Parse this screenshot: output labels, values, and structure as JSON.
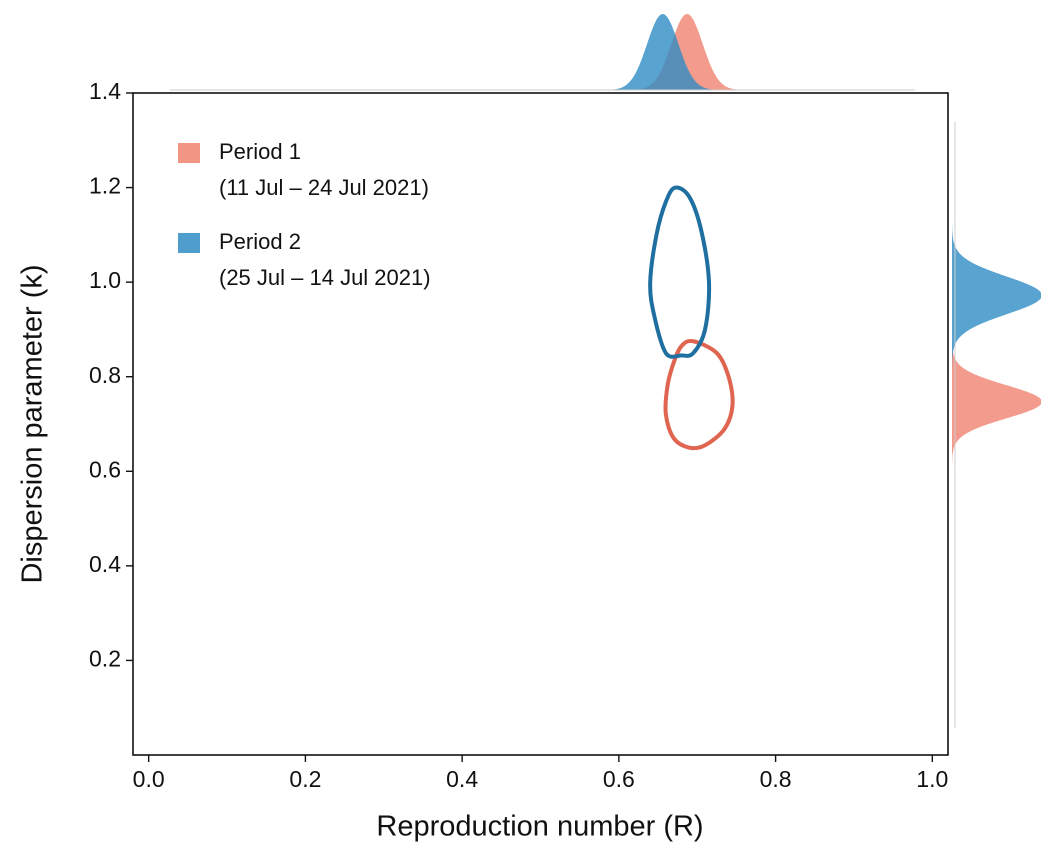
{
  "chart_data": {
    "type": "contour",
    "xlabel": "Reproduction number (R)",
    "ylabel": "Dispersion parameter (k)",
    "xlim": [
      -0.02,
      1.02
    ],
    "ylim": [
      0,
      1.4
    ],
    "xticks": [
      {
        "value": 0,
        "label": "0.0"
      },
      0.2,
      0.4,
      0.6,
      0.8,
      {
        "value": 1,
        "label": "1.0"
      }
    ],
    "yticks": [
      0.2,
      0.4,
      0.6,
      0.8,
      {
        "value": 1,
        "label": "1.0"
      },
      1.2,
      1.4
    ],
    "legend": "upper left",
    "series": [
      {
        "name": "Period 1",
        "period": "(11 Jul – 24 Jul 2021)",
        "color": "#e06550",
        "fill": "#f08270",
        "x": [
          0.695,
          0.725,
          0.74,
          0.745,
          0.735,
          0.71,
          0.69,
          0.67,
          0.66,
          0.662,
          0.67,
          0.68
        ],
        "y": [
          0.875,
          0.85,
          0.8,
          0.74,
          0.69,
          0.655,
          0.65,
          0.67,
          0.72,
          0.78,
          0.83,
          0.865
        ],
        "marginal_R": {
          "mean": 0.687,
          "sd": 0.02
        },
        "marginal_k": {
          "mean": 0.747,
          "sd": 0.035
        }
      },
      {
        "name": "Period 2",
        "period": "(25 Jul – 14 Jul 2021)",
        "color": "#1f6fa0",
        "fill": "#2f8cc4",
        "x": [
          0.672,
          0.69,
          0.705,
          0.715,
          0.71,
          0.695,
          0.68,
          0.66,
          0.645,
          0.64,
          0.648,
          0.66
        ],
        "y": [
          1.2,
          1.18,
          1.11,
          1.0,
          0.9,
          0.85,
          0.845,
          0.85,
          0.93,
          1.0,
          1.1,
          1.17
        ],
        "marginal_R": {
          "mean": 0.656,
          "sd": 0.02
        },
        "marginal_k": {
          "mean": 0.972,
          "sd": 0.04
        }
      }
    ]
  }
}
